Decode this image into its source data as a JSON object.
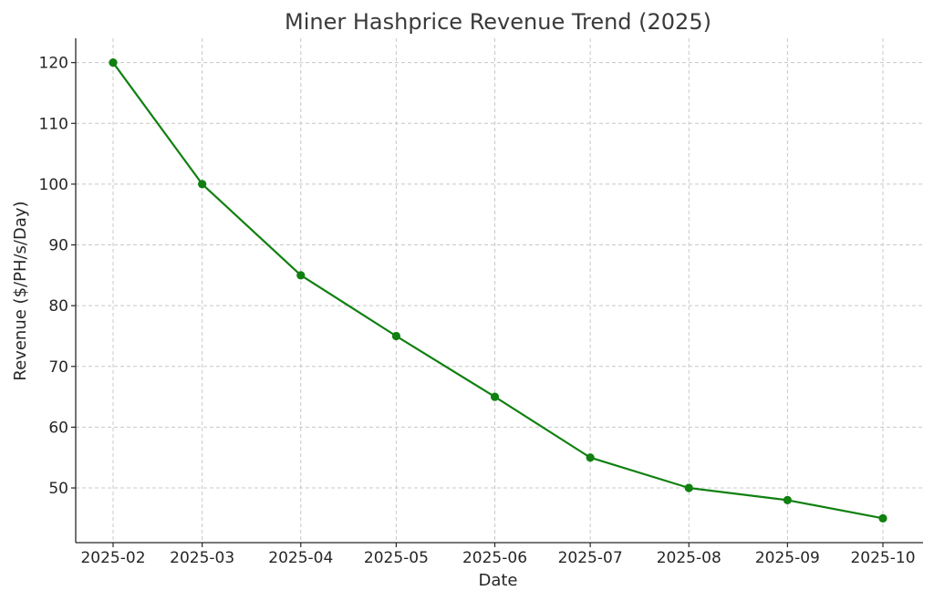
{
  "chart_data": {
    "type": "line",
    "title": "Miner Hashprice Revenue Trend (2025)",
    "xlabel": "Date",
    "ylabel": "Revenue ($/PH/s/Day)",
    "x": [
      "2025-02-01",
      "2025-03-01",
      "2025-04-01",
      "2025-05-01",
      "2025-06-01",
      "2025-07-01",
      "2025-08-01",
      "2025-09-01",
      "2025-10-01"
    ],
    "x_tick_labels": [
      "2025-02",
      "2025-03",
      "2025-04",
      "2025-05",
      "2025-06",
      "2025-07",
      "2025-08",
      "2025-09",
      "2025-10"
    ],
    "series": [
      {
        "values": [
          120,
          100,
          85,
          75,
          65,
          55,
          50,
          48,
          45
        ],
        "color": "#108010",
        "marker": "circle"
      }
    ],
    "y_ticks": [
      50,
      60,
      70,
      80,
      90,
      100,
      110,
      120
    ],
    "ylim": [
      41,
      124
    ],
    "grid": true,
    "legend": "none"
  }
}
